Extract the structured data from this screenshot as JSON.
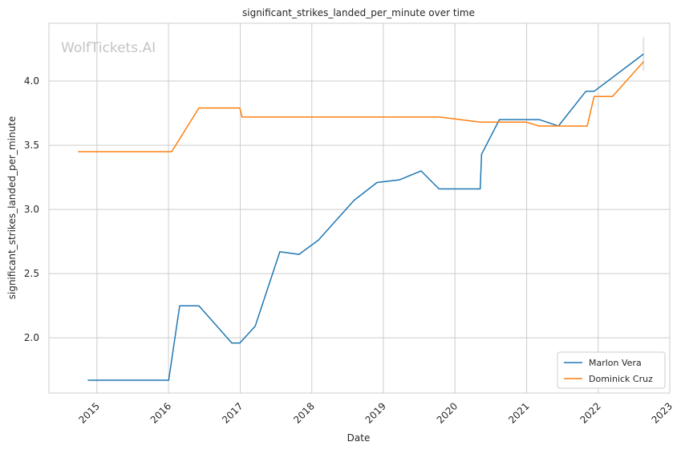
{
  "chart_data": {
    "type": "line",
    "title": "significant_strikes_landed_per_minute over time",
    "xlabel": "Date",
    "ylabel": "significant_strikes_landed_per_minute",
    "watermark": "WolfTickets.AI",
    "x_ticks": [
      "2015",
      "2016",
      "2017",
      "2018",
      "2019",
      "2020",
      "2021",
      "2022",
      "2023"
    ],
    "y_ticks": [
      "2.0",
      "2.5",
      "3.0",
      "3.5",
      "4.0"
    ],
    "xlim": [
      "2014-05-01",
      "2023-01-01"
    ],
    "ylim": [
      1.57,
      4.45
    ],
    "grid": true,
    "legend_position": "lower-right",
    "series": [
      {
        "name": "Marlon Vera",
        "color": "#1f77b4",
        "points": [
          [
            "2014-11-15",
            1.67
          ],
          [
            "2016-01-02",
            1.67
          ],
          [
            "2016-02-27",
            2.25
          ],
          [
            "2016-06-04",
            2.25
          ],
          [
            "2016-11-19",
            1.96
          ],
          [
            "2016-12-30",
            1.96
          ],
          [
            "2017-03-18",
            2.09
          ],
          [
            "2017-07-22",
            2.67
          ],
          [
            "2017-10-28",
            2.65
          ],
          [
            "2018-02-03",
            2.76
          ],
          [
            "2018-08-04",
            3.07
          ],
          [
            "2018-11-30",
            3.21
          ],
          [
            "2019-03-23",
            3.23
          ],
          [
            "2019-07-13",
            3.3
          ],
          [
            "2019-10-12",
            3.16
          ],
          [
            "2020-05-09",
            3.16
          ],
          [
            "2020-05-16",
            3.43
          ],
          [
            "2020-08-15",
            3.7
          ],
          [
            "2020-12-19",
            3.7
          ],
          [
            "2021-03-06",
            3.7
          ],
          [
            "2021-06-12",
            3.65
          ],
          [
            "2021-10-30",
            3.92
          ],
          [
            "2021-12-11",
            3.92
          ],
          [
            "2022-08-20",
            4.21
          ]
        ],
        "band": {
          "x": "2022-08-20",
          "low": 4.08,
          "high": 4.34
        }
      },
      {
        "name": "Dominick Cruz",
        "color": "#ff7f0e",
        "points": [
          [
            "2014-09-27",
            3.45
          ],
          [
            "2016-01-17",
            3.45
          ],
          [
            "2016-06-04",
            3.79
          ],
          [
            "2016-12-30",
            3.79
          ],
          [
            "2017-01-10",
            3.72
          ],
          [
            "2019-10-15",
            3.72
          ],
          [
            "2020-05-09",
            3.68
          ],
          [
            "2020-12-31",
            3.68
          ],
          [
            "2021-03-06",
            3.65
          ],
          [
            "2021-11-06",
            3.65
          ],
          [
            "2021-12-11",
            3.88
          ],
          [
            "2022-03-15",
            3.88
          ],
          [
            "2022-08-20",
            4.15
          ]
        ]
      }
    ]
  }
}
